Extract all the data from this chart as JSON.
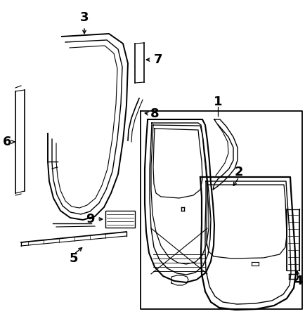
{
  "bg_color": "#ffffff",
  "line_color": "#000000",
  "label_color": "#000000",
  "figsize": [
    4.34,
    4.47
  ],
  "dpi": 100,
  "font_size": 13
}
